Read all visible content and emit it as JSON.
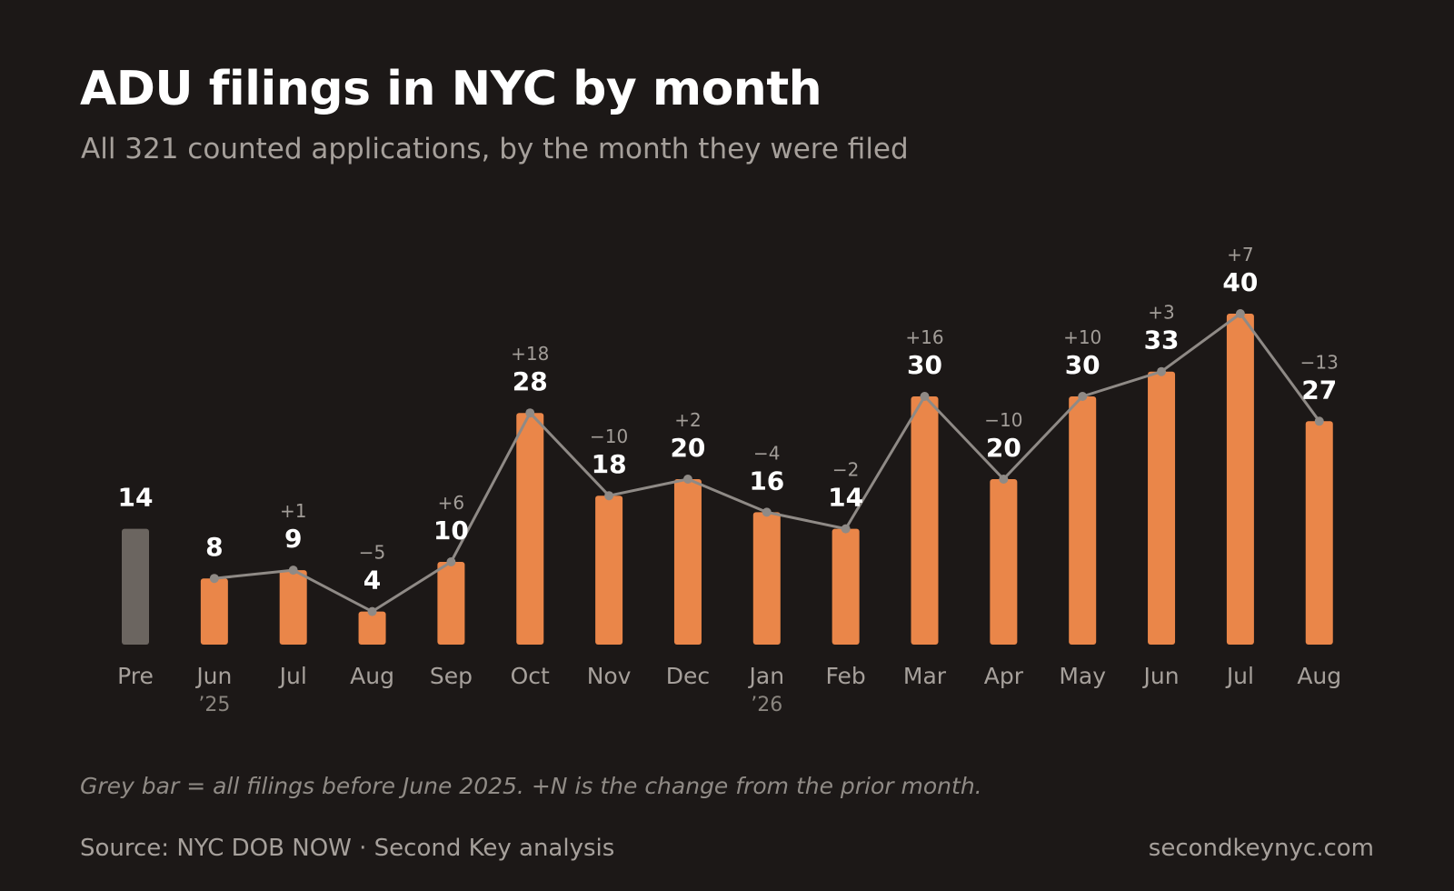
{
  "title": "ADU filings in NYC by month",
  "subtitle": "All 321 counted applications, by the month they were filed",
  "note": "Grey bar = all filings before June 2025. +N is the change from the prior month.",
  "source": "Source: NYC DOB NOW · Second Key analysis",
  "site": "secondkeynyc.com",
  "colors": {
    "background": "#1c1817",
    "bar": "#ea8649",
    "pre_bar": "#6b6560",
    "line": "#8f8a86",
    "value_label": "#ffffff",
    "delta_label": "#a29d98",
    "axis_label": "#a6a09b"
  },
  "chart_data": {
    "type": "bar",
    "categories": [
      "Pre",
      "Jun",
      "Jul",
      "Aug",
      "Sep",
      "Oct",
      "Nov",
      "Dec",
      "Jan",
      "Feb",
      "Mar",
      "Apr",
      "May",
      "Jun",
      "Jul",
      "Aug"
    ],
    "year_labels": [
      "",
      "’25",
      "",
      "",
      "",
      "",
      "",
      "",
      "’26",
      "",
      "",
      "",
      "",
      "",
      "",
      ""
    ],
    "values": [
      14,
      8,
      9,
      4,
      10,
      28,
      18,
      20,
      16,
      14,
      30,
      20,
      30,
      33,
      40,
      27
    ],
    "deltas": [
      "",
      "",
      "+1",
      "−5",
      "+6",
      "+18",
      "−10",
      "+2",
      "−4",
      "−2",
      "+16",
      "−10",
      "+10",
      "+3",
      "+7",
      "−13"
    ],
    "highlight_first_bar": true,
    "line_overlay": true,
    "ylim": [
      0,
      40
    ],
    "grid": false,
    "legend": "none"
  }
}
